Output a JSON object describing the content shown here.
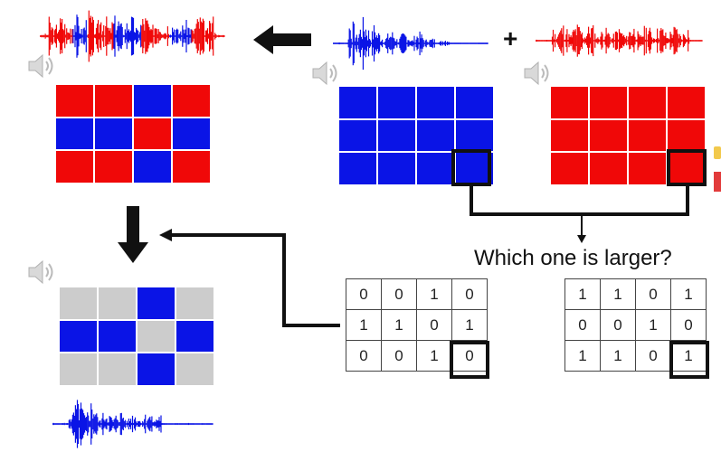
{
  "question": "Which one is larger?",
  "plus_sign": "+",
  "colors": {
    "blue": "#0a14e6",
    "red": "#f00808",
    "gray": "#cccccc",
    "black": "#111111"
  },
  "icons": [
    "speaker-icon",
    "arrow-left-icon",
    "arrow-down-icon"
  ],
  "mixture_grid": [
    [
      "red",
      "red",
      "blue",
      "red"
    ],
    [
      "blue",
      "blue",
      "red",
      "blue"
    ],
    [
      "red",
      "red",
      "blue",
      "red"
    ]
  ],
  "speech_grid": [
    [
      "blue",
      "blue",
      "blue",
      "blue"
    ],
    [
      "blue",
      "blue",
      "blue",
      "blue"
    ],
    [
      "blue",
      "blue",
      "blue",
      "blue"
    ]
  ],
  "noise_grid": [
    [
      "red",
      "red",
      "red",
      "red"
    ],
    [
      "red",
      "red",
      "red",
      "red"
    ],
    [
      "red",
      "red",
      "red",
      "red"
    ]
  ],
  "masked_grid": [
    [
      "gray",
      "gray",
      "blue",
      "gray"
    ],
    [
      "blue",
      "blue",
      "gray",
      "blue"
    ],
    [
      "gray",
      "gray",
      "blue",
      "gray"
    ]
  ],
  "speech_mask": [
    [
      "0",
      "0",
      "1",
      "0"
    ],
    [
      "1",
      "1",
      "0",
      "1"
    ],
    [
      "0",
      "0",
      "1",
      "0"
    ]
  ],
  "noise_mask": [
    [
      "1",
      "1",
      "0",
      "1"
    ],
    [
      "0",
      "0",
      "1",
      "0"
    ],
    [
      "1",
      "1",
      "0",
      "1"
    ]
  ]
}
